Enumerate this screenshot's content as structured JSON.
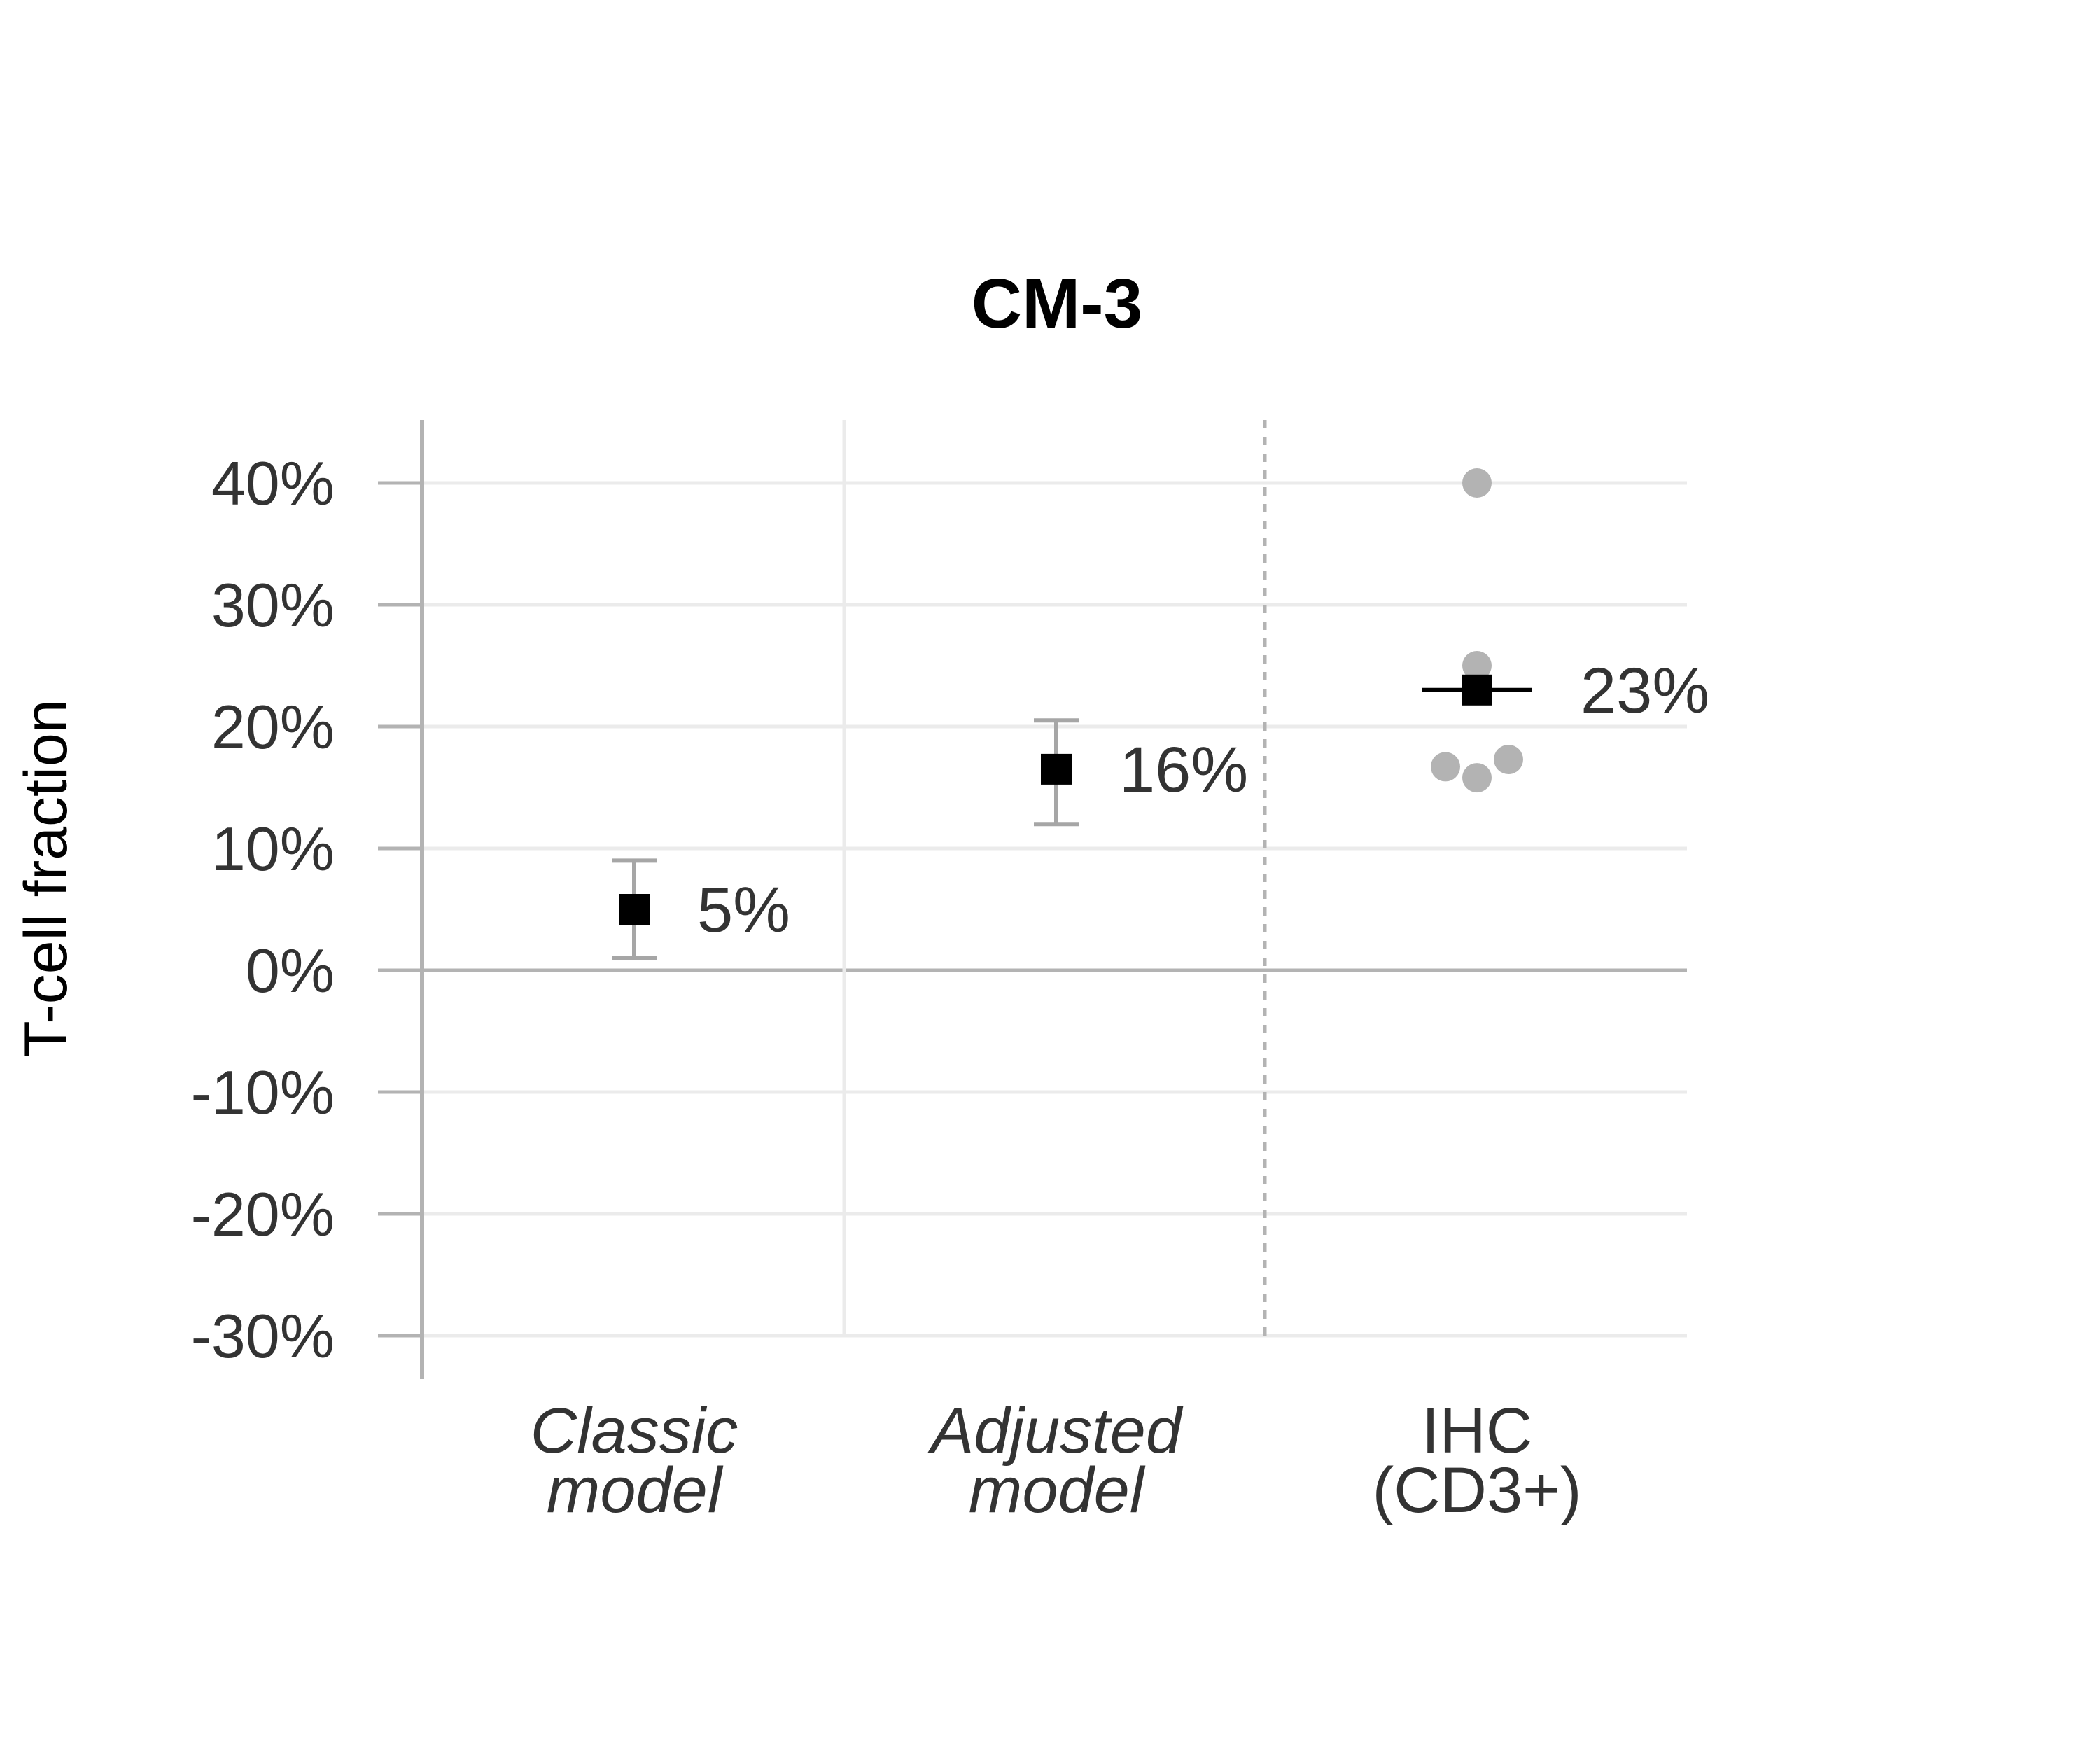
{
  "chart_data": {
    "type": "scatter",
    "title": "CM-3",
    "ylabel": "T-cell fraction",
    "xlabel": "",
    "ylim": [
      -30,
      40
    ],
    "yticks": [
      {
        "value": 40,
        "label": "40%"
      },
      {
        "value": 30,
        "label": "30%"
      },
      {
        "value": 20,
        "label": "20%"
      },
      {
        "value": 10,
        "label": "10%"
      },
      {
        "value": 0,
        "label": "0%"
      },
      {
        "value": -10,
        "label": "-10%"
      },
      {
        "value": -20,
        "label": "-20%"
      },
      {
        "value": -30,
        "label": "-30%"
      }
    ],
    "categories": [
      {
        "line1": "Classic",
        "line2": "model",
        "italic": true
      },
      {
        "line1": "Adjusted",
        "line2": "model",
        "italic": true
      },
      {
        "line1": "IHC",
        "line2": "(CD3+)",
        "italic": false
      }
    ],
    "estimates": [
      {
        "category": 0,
        "value": 5,
        "lower": 1,
        "upper": 9,
        "label": "5%"
      },
      {
        "category": 1,
        "value": 16.5,
        "lower": 12,
        "upper": 20.5,
        "label": "16%"
      },
      {
        "category": 2,
        "value": 23,
        "label": "23%"
      }
    ],
    "ihc_points": [
      40,
      25,
      16.7,
      15.8,
      17.3
    ],
    "grid": true,
    "legend": "none",
    "colors": {
      "estimate": "#000000",
      "errorbar": "#a6a6a6",
      "ihc_point": "#b3b3b3",
      "grid": "#ebebeb",
      "axis": "#b3b3b3",
      "text": "#333333"
    }
  }
}
